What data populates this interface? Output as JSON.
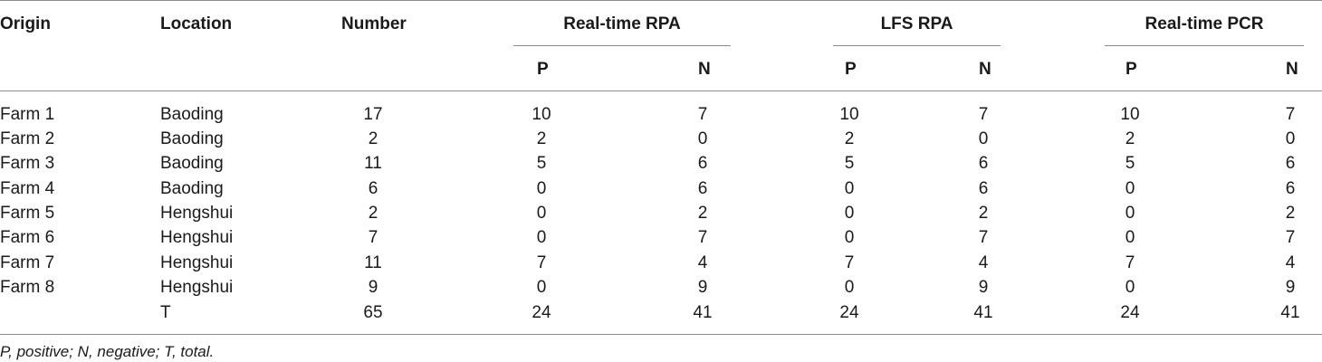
{
  "table": {
    "headers": {
      "origin": "Origin",
      "location": "Location",
      "number": "Number",
      "groups": [
        "Real-time RPA",
        "LFS RPA",
        "Real-time PCR"
      ],
      "subcols": [
        "P",
        "N",
        "P",
        "N",
        "P",
        "N"
      ]
    },
    "rows": [
      {
        "origin": "Farm 1",
        "location": "Baoding",
        "number": "17",
        "values": [
          "10",
          "7",
          "10",
          "7",
          "10",
          "7"
        ]
      },
      {
        "origin": "Farm 2",
        "location": "Baoding",
        "number": "2",
        "values": [
          "2",
          "0",
          "2",
          "0",
          "2",
          "0"
        ]
      },
      {
        "origin": "Farm 3",
        "location": "Baoding",
        "number": "11",
        "values": [
          "5",
          "6",
          "5",
          "6",
          "5",
          "6"
        ]
      },
      {
        "origin": "Farm 4",
        "location": "Baoding",
        "number": "6",
        "values": [
          "0",
          "6",
          "0",
          "6",
          "0",
          "6"
        ]
      },
      {
        "origin": "Farm 5",
        "location": "Hengshui",
        "number": "2",
        "values": [
          "0",
          "2",
          "0",
          "2",
          "0",
          "2"
        ]
      },
      {
        "origin": "Farm 6",
        "location": "Hengshui",
        "number": "7",
        "values": [
          "0",
          "7",
          "0",
          "7",
          "0",
          "7"
        ]
      },
      {
        "origin": "Farm 7",
        "location": "Hengshui",
        "number": "11",
        "values": [
          "7",
          "4",
          "7",
          "4",
          "7",
          "4"
        ]
      },
      {
        "origin": "Farm 8",
        "location": "Hengshui",
        "number": "9",
        "values": [
          "0",
          "9",
          "0",
          "9",
          "0",
          "9"
        ]
      },
      {
        "origin": "",
        "location": "T",
        "number": "65",
        "values": [
          "24",
          "41",
          "24",
          "41",
          "24",
          "41"
        ]
      }
    ],
    "footnote": "P, positive; N, negative; T, total."
  }
}
